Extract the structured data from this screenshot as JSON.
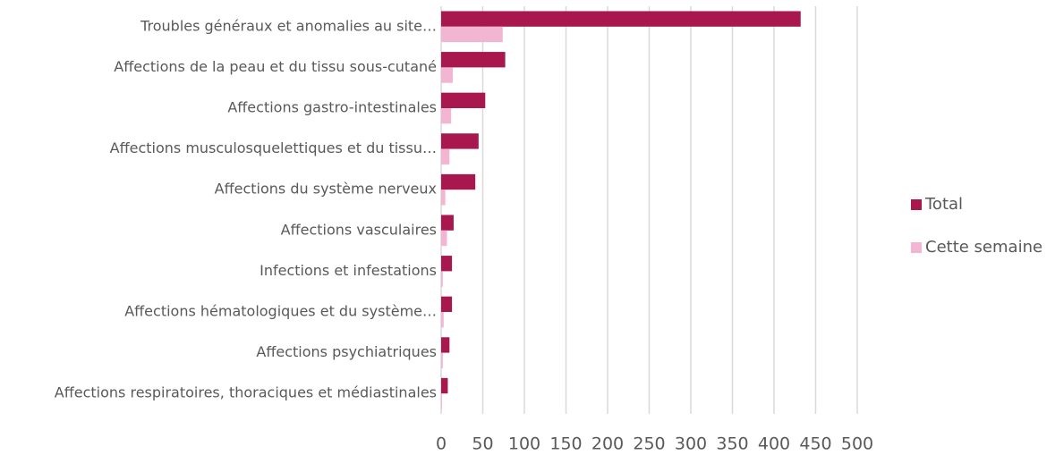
{
  "chart_data": {
    "type": "barh",
    "categories": [
      "Troubles généraux et anomalies au site…",
      "Affections de la peau et du tissu sous-cutané",
      "Affections gastro-intestinales",
      "Affections musculosquelettiques et du tissu…",
      "Affections du système nerveux",
      "Affections vasculaires",
      "Infections et infestations",
      "Affections hématologiques et du système…",
      "Affections psychiatriques",
      "Affections respiratoires, thoraciques et médiastinales"
    ],
    "series": [
      {
        "name": "Total",
        "color": "#a8174e",
        "values": [
          432,
          77,
          53,
          45,
          41,
          15,
          13,
          13,
          10,
          8
        ]
      },
      {
        "name": "Cette semaine",
        "color": "#f2b6d2",
        "values": [
          74,
          14,
          12,
          10,
          5,
          7,
          2,
          3,
          2,
          1
        ]
      }
    ],
    "xlim": [
      0,
      500
    ],
    "xticks": [
      0,
      50,
      100,
      150,
      200,
      250,
      300,
      350,
      400,
      450,
      500
    ],
    "grid": true,
    "legend": "right"
  }
}
